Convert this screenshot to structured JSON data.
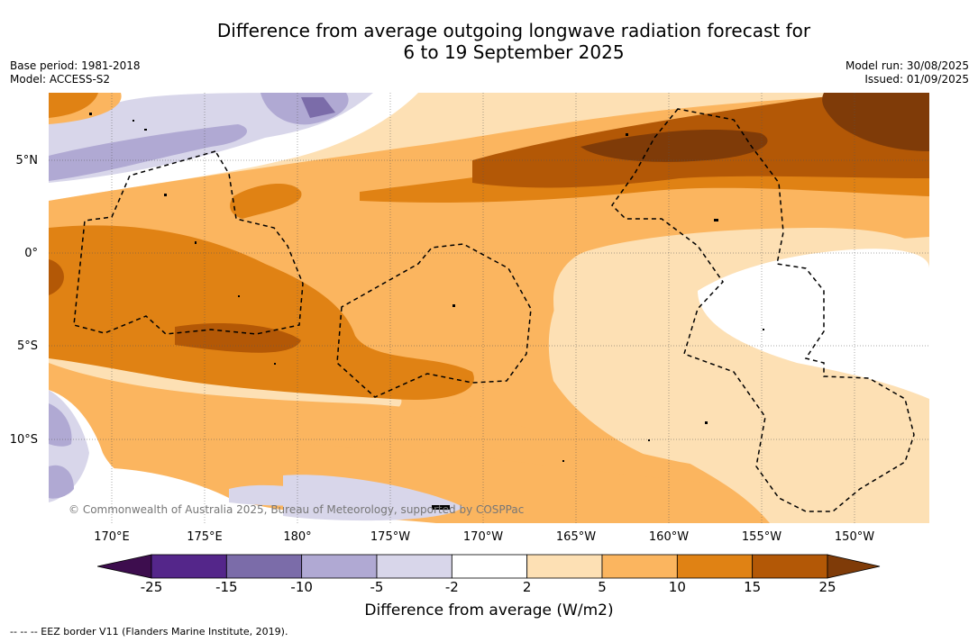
{
  "title_line1": "Difference from average outgoing longwave radiation forecast for",
  "title_line2": "6 to 19 September 2025",
  "meta_left": {
    "base_period": "Base period: 1981-2018",
    "model": "Model: ACCESS-S2"
  },
  "meta_right": {
    "model_run": "Model run: 30/08/2025",
    "issued": "Issued: 01/09/2025"
  },
  "lat_labels": [
    "5°N",
    "0°",
    "5°S",
    "10°S"
  ],
  "lon_labels": [
    "170°E",
    "175°E",
    "180°",
    "175°W",
    "170°W",
    "165°W",
    "160°W",
    "155°W",
    "150°W"
  ],
  "credit": "© Commonwealth of Australia 2025, Bureau of Meteorology, supported by COSPPac",
  "colorbar": {
    "ticks": [
      "-25",
      "-15",
      "-10",
      "-5",
      "-2",
      "2",
      "5",
      "10",
      "15",
      "25"
    ],
    "colors": [
      "#3d0d4e",
      "#54268a",
      "#7b6ca9",
      "#b0a9d3",
      "#d8d6ea",
      "#ffffff",
      "#fde0b4",
      "#fbb55f",
      "#e08214",
      "#b35806",
      "#7f3b08"
    ],
    "title": "Difference from average (W/m2)"
  },
  "footnote": "--  --  -- EEZ border V11 (Flanders Marine Institute, 2019)."
}
